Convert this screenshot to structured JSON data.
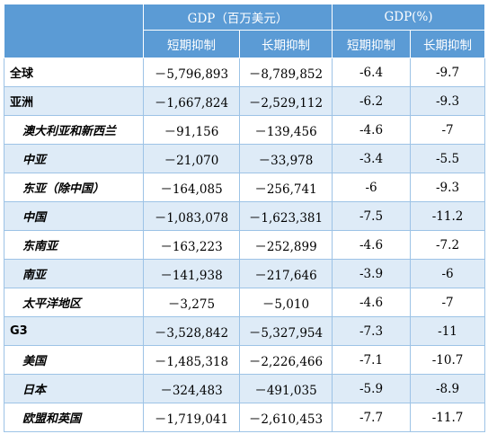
{
  "header": {
    "group_gdp_usd": "GDP（百万美元）",
    "group_gdp_pct": "GDP(%)",
    "short_term_1": "短期抑制",
    "long_term_1": "长期抑制",
    "short_term_2": "短期抑制",
    "long_term_2": "长期抑制"
  },
  "rows": [
    {
      "label": "全球",
      "sub": false,
      "alt": false,
      "v1": "－5,796,893",
      "v2": "－8,789,852",
      "v3": "-6.4",
      "v4": "-9.7"
    },
    {
      "label": "亚洲",
      "sub": false,
      "alt": true,
      "v1": "－1,667,824",
      "v2": "－2,529,112",
      "v3": "-6.2",
      "v4": "-9.3"
    },
    {
      "label": "澳大利亚和新西兰",
      "sub": true,
      "alt": false,
      "v1": "－91,156",
      "v2": "－139,456",
      "v3": "-4.6",
      "v4": "-7"
    },
    {
      "label": "中亚",
      "sub": true,
      "alt": true,
      "v1": "－21,070",
      "v2": "－33,978",
      "v3": "-3.4",
      "v4": "-5.5"
    },
    {
      "label": "东亚（除中国）",
      "sub": true,
      "alt": false,
      "v1": "－164,085",
      "v2": "－256,741",
      "v3": "-6",
      "v4": "-9.3"
    },
    {
      "label": "中国",
      "sub": true,
      "alt": true,
      "v1": "－1,083,078",
      "v2": "－1,623,381",
      "v3": "-7.5",
      "v4": "-11.2"
    },
    {
      "label": "东南亚",
      "sub": true,
      "alt": false,
      "v1": "－163,223",
      "v2": "－252,899",
      "v3": "-4.6",
      "v4": "-7.2"
    },
    {
      "label": "南亚",
      "sub": true,
      "alt": true,
      "v1": "－141,938",
      "v2": "－217,646",
      "v3": "-3.9",
      "v4": "-6"
    },
    {
      "label": "太平洋地区",
      "sub": true,
      "alt": false,
      "v1": "－3,275",
      "v2": "－5,010",
      "v3": "-4.6",
      "v4": "-7"
    },
    {
      "label": "G3",
      "sub": false,
      "alt": true,
      "v1": "－3,528,842",
      "v2": "－5,327,954",
      "v3": "-7.3",
      "v4": "-11"
    },
    {
      "label": "美国",
      "sub": true,
      "alt": false,
      "v1": "－1,485,318",
      "v2": "－2,226,466",
      "v3": "-7.1",
      "v4": "-10.7"
    },
    {
      "label": "日本",
      "sub": true,
      "alt": true,
      "v1": "－324,483",
      "v2": "－491,035",
      "v3": "-5.9",
      "v4": "-8.9"
    },
    {
      "label": "欧盟和英国",
      "sub": true,
      "alt": false,
      "v1": "－1,719,041",
      "v2": "－2,610,453",
      "v3": "-7.7",
      "v4": "-11.7"
    }
  ],
  "colors": {
    "header_bg": "#5b9bd5",
    "alt_row_bg": "#deebf7",
    "border": "#9dc3e6"
  }
}
